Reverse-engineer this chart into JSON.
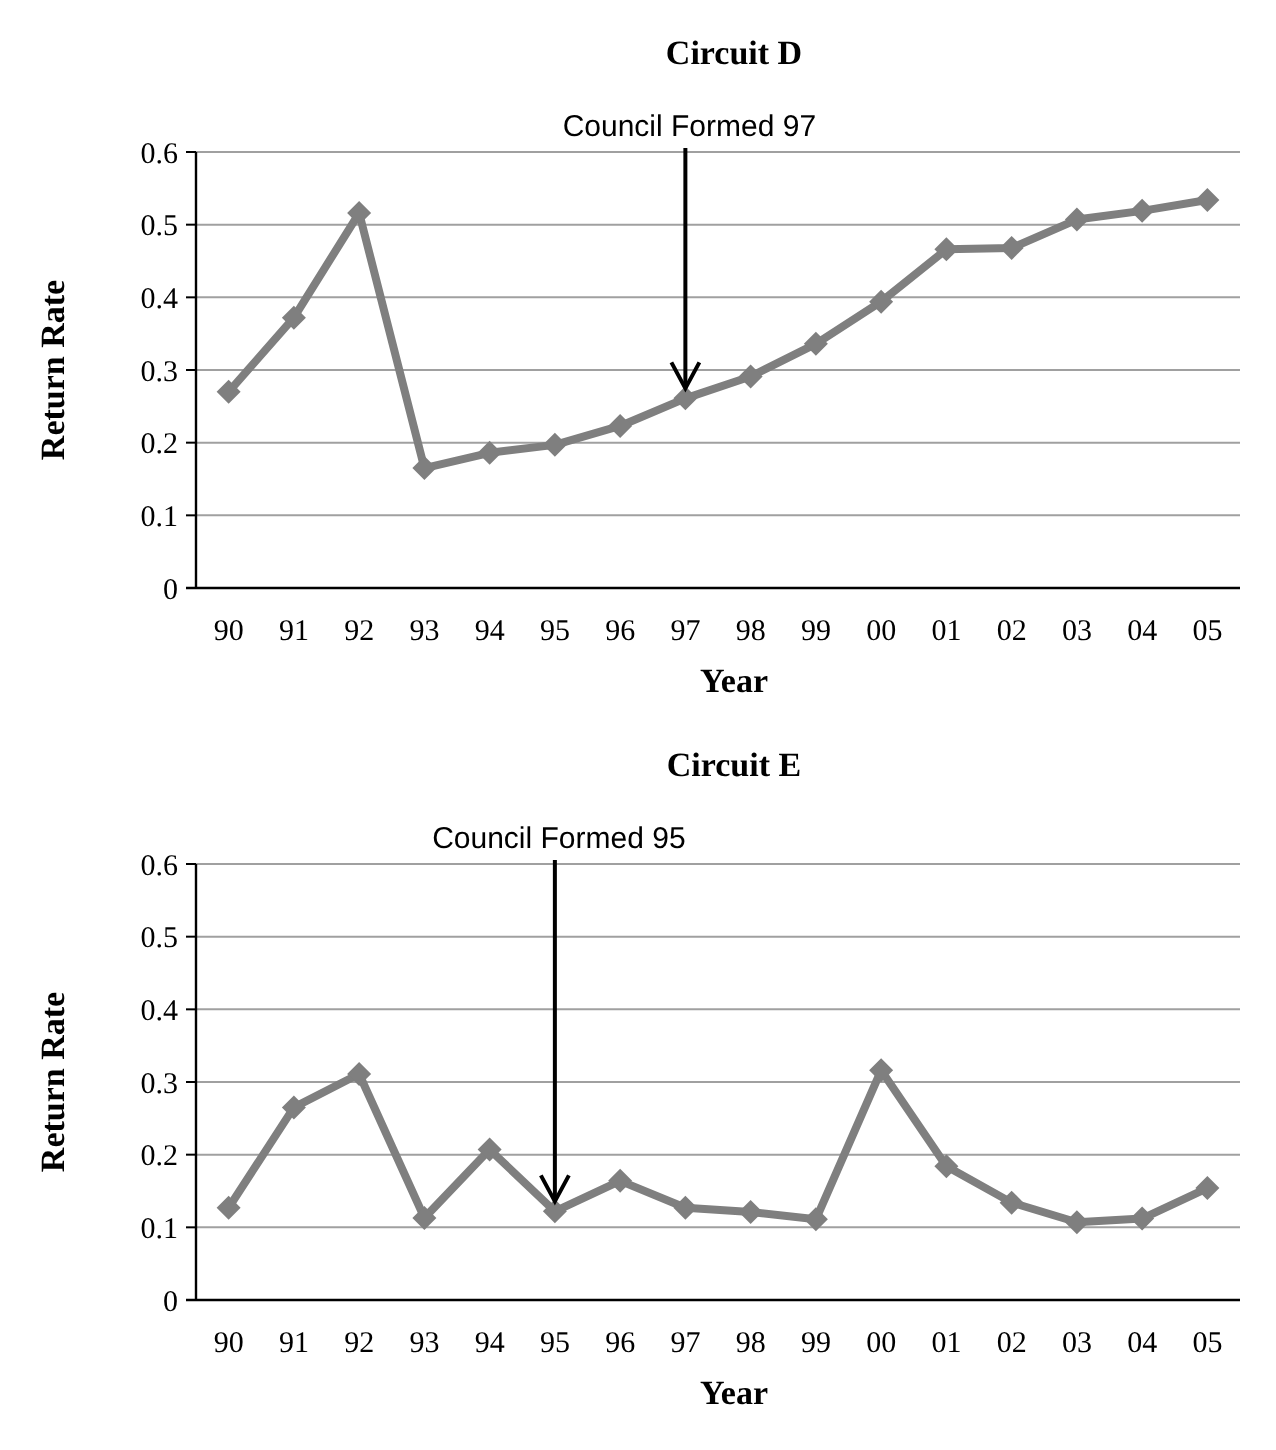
{
  "chart_data": [
    {
      "type": "line",
      "title": "Circuit D",
      "xlabel": "Year",
      "ylabel": "Return Rate",
      "categories": [
        "90",
        "91",
        "92",
        "93",
        "94",
        "95",
        "96",
        "97",
        "98",
        "99",
        "00",
        "01",
        "02",
        "03",
        "04",
        "05"
      ],
      "series": [
        {
          "color": "#7f7f7f",
          "values": [
            0.27,
            0.372,
            0.516,
            0.165,
            0.186,
            0.197,
            0.223,
            0.261,
            0.291,
            0.336,
            0.394,
            0.466,
            0.468,
            0.507,
            0.519,
            0.534
          ]
        }
      ],
      "ylim": [
        0,
        0.6
      ],
      "yticks": [
        {
          "value": 0,
          "label": "0"
        },
        {
          "value": 0.1,
          "label": "0.1"
        },
        {
          "value": 0.2,
          "label": "0.2"
        },
        {
          "value": 0.3,
          "label": "0.3"
        },
        {
          "value": 0.4,
          "label": "0.4"
        },
        {
          "value": 0.5,
          "label": "0.5"
        },
        {
          "value": 0.6,
          "label": "0.6"
        }
      ],
      "grid": "y",
      "marker": "diamond",
      "line_style": "solid",
      "annotations": [
        {
          "text": "Council Formed 97",
          "x": "97",
          "y": 0.261
        }
      ]
    },
    {
      "type": "line",
      "title": "Circuit E",
      "xlabel": "Year",
      "ylabel": "Return Rate",
      "categories": [
        "90",
        "91",
        "92",
        "93",
        "94",
        "95",
        "96",
        "97",
        "98",
        "99",
        "00",
        "01",
        "02",
        "03",
        "04",
        "05"
      ],
      "series": [
        {
          "color": "#7f7f7f",
          "values": [
            0.127,
            0.265,
            0.311,
            0.113,
            0.207,
            0.122,
            0.164,
            0.127,
            0.121,
            0.111,
            0.316,
            0.184,
            0.134,
            0.107,
            0.112,
            0.154
          ]
        }
      ],
      "ylim": [
        0,
        0.6
      ],
      "yticks": [
        {
          "value": 0,
          "label": "0"
        },
        {
          "value": 0.1,
          "label": "0.1"
        },
        {
          "value": 0.2,
          "label": "0.2"
        },
        {
          "value": 0.3,
          "label": "0.3"
        },
        {
          "value": 0.4,
          "label": "0.4"
        },
        {
          "value": 0.5,
          "label": "0.5"
        },
        {
          "value": 0.6,
          "label": "0.6"
        }
      ],
      "grid": "y",
      "marker": "diamond",
      "line_style": "solid",
      "annotations": [
        {
          "text": "Council Formed 95",
          "x": "95",
          "y": 0.122
        }
      ]
    }
  ]
}
